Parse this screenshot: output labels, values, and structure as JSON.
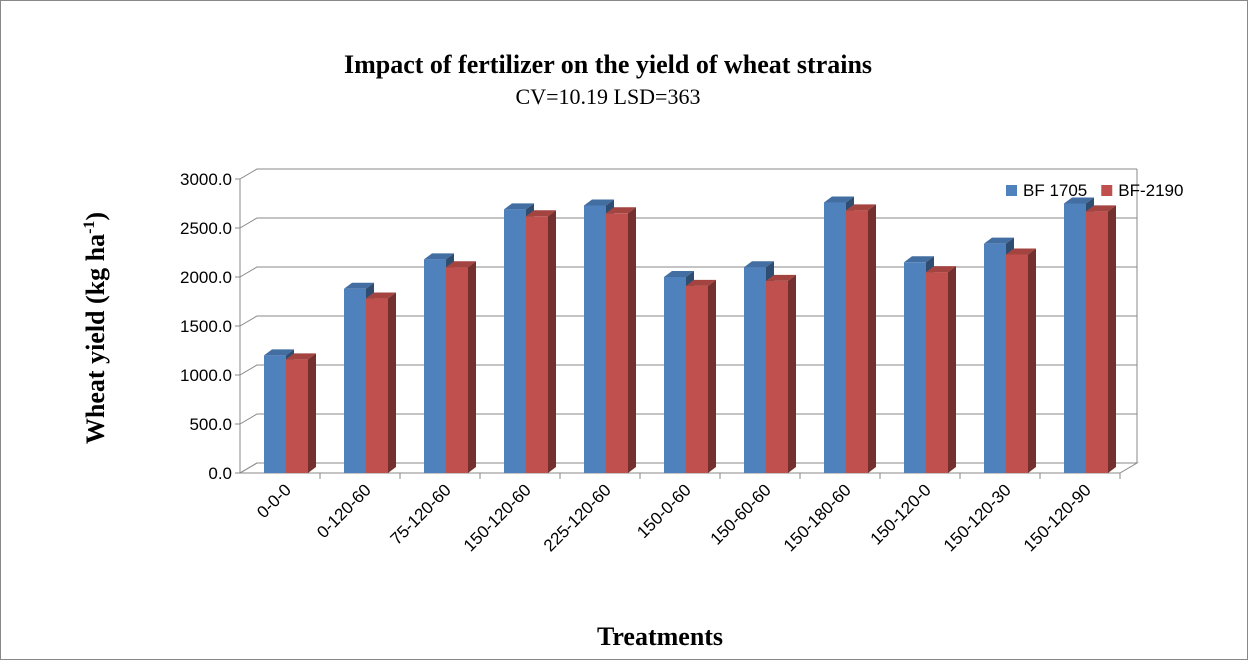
{
  "chart_data": {
    "type": "bar3d",
    "title": "Impact of fertilizer on the yield of wheat strains",
    "subtitle": "CV=10.19  LSD=363",
    "x_label": "Treatments",
    "y_label": {
      "text": "Wheat yield (kg ha",
      "sup": "-1",
      "end": ")"
    },
    "categories": [
      "0-0-0",
      "0-120-60",
      "75-120-60",
      "150-120-60",
      "225-120-60",
      "150-0-60",
      "150-60-60",
      "150-180-60",
      "150-120-0",
      "150-120-30",
      "150-120-90"
    ],
    "series": [
      {
        "name": "BF 1705",
        "color": "#4f81bd",
        "values": [
          1200,
          1880,
          2180,
          2690,
          2730,
          2000,
          2100,
          2760,
          2150,
          2340,
          2750
        ]
      },
      {
        "name": "BF-2190",
        "color": "#c0504d",
        "values": [
          1160,
          1780,
          2100,
          2620,
          2650,
          1910,
          1960,
          2680,
          2050,
          2230,
          2670
        ]
      }
    ],
    "ylim": [
      0,
      3000
    ],
    "yticks": [
      {
        "value": 0,
        "label": "0.0"
      },
      {
        "value": 500,
        "label": "500.0"
      },
      {
        "value": 1000,
        "label": "1000.0"
      },
      {
        "value": 1500,
        "label": "1500.0"
      },
      {
        "value": 2000,
        "label": "2000.0"
      },
      {
        "value": 2500,
        "label": "2500.0"
      },
      {
        "value": 3000,
        "label": "3000.0"
      }
    ],
    "grid": true,
    "legend": "top-right"
  }
}
